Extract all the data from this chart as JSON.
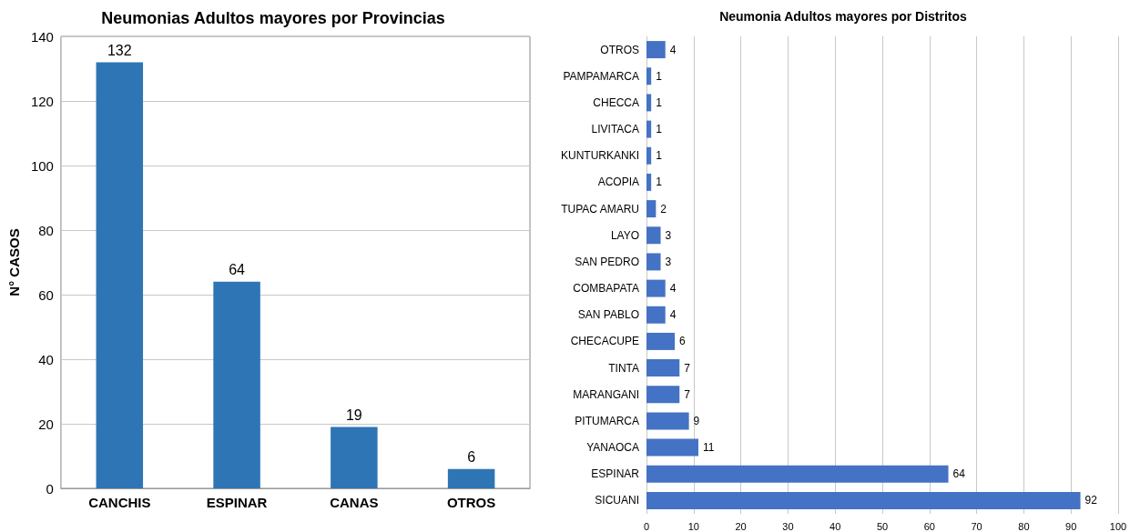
{
  "chart_data": [
    {
      "type": "bar",
      "title": "Neumonias Adultos mayores por Provincias",
      "ylabel": "N° CASOS",
      "categories": [
        "CANCHIS",
        "ESPINAR",
        "CANAS",
        "OTROS"
      ],
      "values": [
        132,
        64,
        19,
        6
      ],
      "color": "#2e75b6",
      "ylim": [
        0,
        140
      ],
      "yticks": [
        0,
        20,
        40,
        60,
        80,
        100,
        120,
        140
      ],
      "grid": "y",
      "data_labels": true
    },
    {
      "type": "bar",
      "orientation": "horizontal",
      "title": "Neumonia Adultos mayores por Distritos",
      "categories": [
        "OTROS",
        "PAMPAMARCA",
        "CHECCA",
        "LIVITACA",
        "KUNTURKANKI",
        "ACOPIA",
        "TUPAC AMARU",
        "LAYO",
        "SAN PEDRO",
        "COMBAPATA",
        "SAN PABLO",
        "CHECACUPE",
        "TINTA",
        "MARANGANI",
        "PITUMARCA",
        "YANAOCA",
        "ESPINAR",
        "SICUANI"
      ],
      "values": [
        4,
        1,
        1,
        1,
        1,
        1,
        2,
        3,
        3,
        4,
        4,
        6,
        7,
        7,
        9,
        11,
        64,
        92
      ],
      "color": "#4472c4",
      "xlim": [
        0,
        100
      ],
      "xticks": [
        0,
        10,
        20,
        30,
        40,
        50,
        60,
        70,
        80,
        90,
        100
      ],
      "grid": "x",
      "data_labels": true
    }
  ]
}
